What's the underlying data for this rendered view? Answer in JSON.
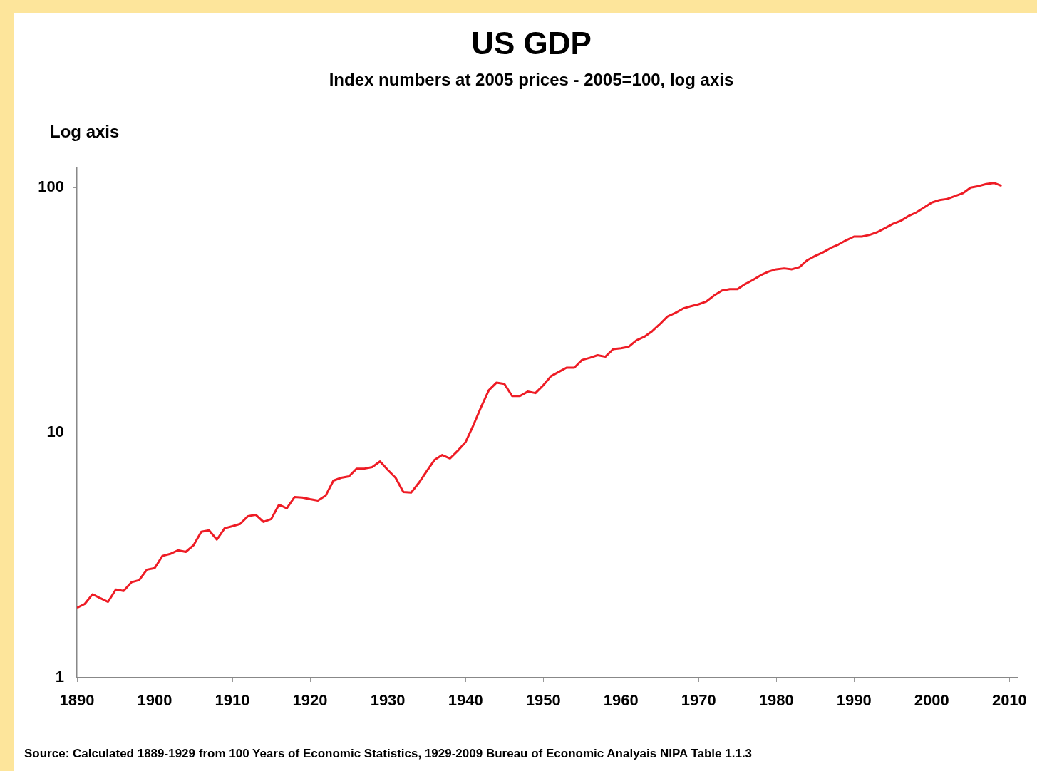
{
  "chart_data": {
    "type": "line",
    "title": "US GDP",
    "subtitle": "Index numbers at 2005 prices - 2005=100, log axis",
    "ylabel": "Log axis",
    "annotations": [
      "Source: Calculated  1889-1929 from 100 Years of Economic Statistics, 1929-2009 Bureau of Economic Analyais NIPA Table 1.1.3"
    ],
    "x": [
      1890,
      1891,
      1892,
      1893,
      1894,
      1895,
      1896,
      1897,
      1898,
      1899,
      1900,
      1901,
      1902,
      1903,
      1904,
      1905,
      1906,
      1907,
      1908,
      1909,
      1910,
      1911,
      1912,
      1913,
      1914,
      1915,
      1916,
      1917,
      1918,
      1919,
      1920,
      1921,
      1922,
      1923,
      1924,
      1925,
      1926,
      1927,
      1928,
      1929,
      1930,
      1931,
      1932,
      1933,
      1934,
      1935,
      1936,
      1937,
      1938,
      1939,
      1940,
      1941,
      1942,
      1943,
      1944,
      1945,
      1946,
      1947,
      1948,
      1949,
      1950,
      1951,
      1952,
      1953,
      1954,
      1955,
      1956,
      1957,
      1958,
      1959,
      1960,
      1961,
      1962,
      1963,
      1964,
      1965,
      1966,
      1967,
      1968,
      1969,
      1970,
      1971,
      1972,
      1973,
      1974,
      1975,
      1976,
      1977,
      1978,
      1979,
      1980,
      1981,
      1982,
      1983,
      1984,
      1985,
      1986,
      1987,
      1988,
      1989,
      1990,
      1991,
      1992,
      1993,
      1994,
      1995,
      1996,
      1997,
      1998,
      1999,
      2000,
      2001,
      2002,
      2003,
      2004,
      2005,
      2006,
      2007,
      2008,
      2009
    ],
    "series": [
      {
        "color": "#ee1c25",
        "values": [
          1.93,
          2.0,
          2.19,
          2.11,
          2.04,
          2.29,
          2.26,
          2.45,
          2.5,
          2.76,
          2.8,
          3.14,
          3.2,
          3.31,
          3.26,
          3.47,
          3.94,
          3.99,
          3.66,
          4.07,
          4.15,
          4.24,
          4.56,
          4.62,
          4.32,
          4.44,
          5.08,
          4.91,
          5.46,
          5.43,
          5.35,
          5.28,
          5.53,
          6.37,
          6.54,
          6.63,
          7.13,
          7.13,
          7.23,
          7.63,
          7.04,
          6.54,
          5.72,
          5.69,
          6.24,
          6.95,
          7.73,
          8.1,
          7.84,
          8.43,
          9.14,
          10.7,
          12.7,
          14.9,
          16.0,
          15.8,
          14.1,
          14.1,
          14.7,
          14.5,
          15.6,
          17.0,
          17.7,
          18.4,
          18.4,
          19.8,
          20.2,
          20.7,
          20.4,
          21.9,
          22.1,
          22.4,
          23.8,
          24.6,
          25.9,
          27.7,
          29.8,
          30.8,
          32.1,
          32.8,
          33.4,
          34.3,
          36.3,
          38.0,
          38.5,
          38.5,
          40.4,
          42.0,
          43.9,
          45.4,
          46.4,
          46.8,
          46.4,
          47.4,
          50.6,
          52.6,
          54.4,
          56.7,
          58.6,
          61.0,
          63.1,
          63.1,
          64.1,
          65.8,
          68.3,
          71.1,
          73.1,
          76.5,
          79.1,
          82.9,
          86.9,
          88.9,
          89.9,
          92.3,
          94.8,
          100,
          101.4,
          103.4,
          104.5,
          101.6
        ]
      }
    ],
    "xlim": [
      1890,
      2011
    ],
    "xticks": [
      1890,
      1900,
      1910,
      1920,
      1930,
      1940,
      1950,
      1960,
      1970,
      1980,
      1990,
      2000,
      2010
    ],
    "ylim": [
      1,
      120
    ],
    "yticks": [
      1,
      10,
      100
    ],
    "log": "y",
    "grid": false,
    "legend": false,
    "marker": "none",
    "line_style": "solid"
  }
}
